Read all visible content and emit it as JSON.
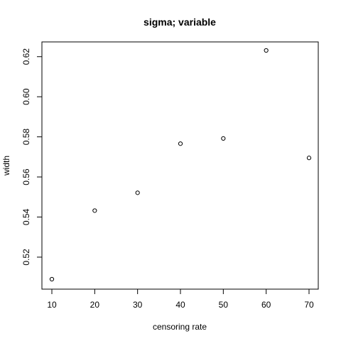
{
  "chart_data": {
    "type": "scatter",
    "title": "sigma; variable",
    "xlabel": "censoring rate",
    "ylabel": "width",
    "x": [
      10,
      20,
      30,
      40,
      50,
      60,
      70
    ],
    "y": [
      0.509,
      0.5432,
      0.5521,
      0.5766,
      0.5792,
      0.6231,
      0.5695
    ],
    "xlim": [
      10,
      70
    ],
    "ylim": [
      0.509,
      0.6231
    ],
    "xticks": [
      10,
      20,
      30,
      40,
      50,
      60,
      70
    ],
    "xtick_labels": [
      "10",
      "20",
      "30",
      "40",
      "50",
      "60",
      "70"
    ],
    "yticks": [
      0.52,
      0.54,
      0.56,
      0.58,
      0.6,
      0.62
    ],
    "ytick_labels": [
      "0.52",
      "0.54",
      "0.56",
      "0.58",
      "0.60",
      "0.62"
    ],
    "grid": false,
    "marker": "open-circle",
    "colors": {
      "axis": "#000000",
      "point_stroke": "#000000",
      "point_fill": "#ffffff",
      "background": "#ffffff"
    }
  }
}
